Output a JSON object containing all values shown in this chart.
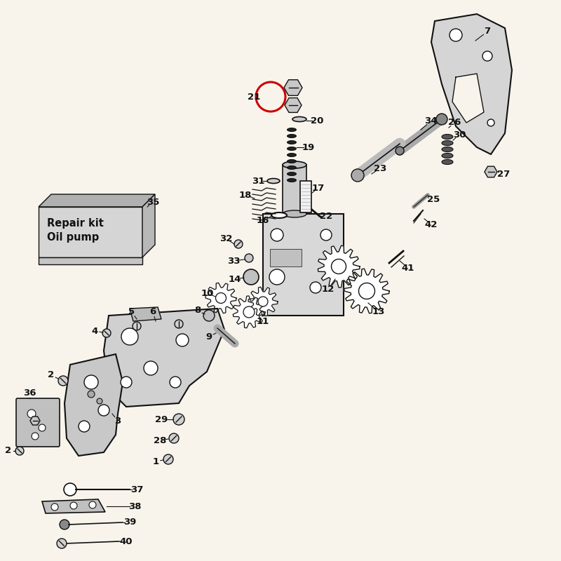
{
  "bg_color": "#f8f4ec",
  "line_color": "#111111",
  "circle_highlight_color": "#cc0000",
  "repair_kit_text": [
    "Repair kit",
    "Oil pump"
  ]
}
